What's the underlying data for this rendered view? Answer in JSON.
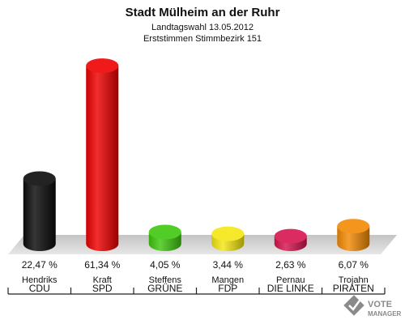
{
  "chart_data": {
    "type": "bar",
    "title": "Stadt Mülheim an der Ruhr",
    "subtitle_1": "Landtagswahl 13.05.2012",
    "subtitle_2": "Erststimmen Stimmbezirk 151",
    "ylim": [
      0,
      65
    ],
    "grid": false,
    "categories": [
      "CDU",
      "SPD",
      "GRÜNE",
      "FDP",
      "DIE LINKE",
      "PIRATEN"
    ],
    "candidates": [
      "Hendriks",
      "Kraft",
      "Steffens",
      "Mangen",
      "Pernau",
      "Trojahn"
    ],
    "values": [
      22.47,
      61.34,
      4.05,
      3.44,
      2.63,
      6.07
    ],
    "value_labels": [
      "22,47 %",
      "61,34 %",
      "4,05 %",
      "3,44 %",
      "2,63 %",
      "6,07 %"
    ],
    "colors": [
      "#0a0a0a",
      "#ee0000",
      "#3fc70f",
      "#f5e614",
      "#d6154f",
      "#f38a05"
    ]
  },
  "watermark": {
    "line1": "VOTE",
    "line2": "MANAGER",
    "icon": "checkmark-ballot-icon"
  }
}
